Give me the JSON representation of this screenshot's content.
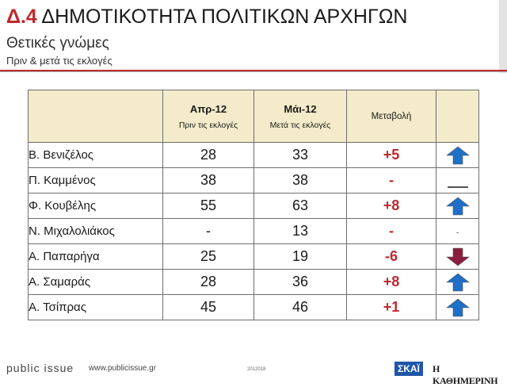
{
  "header": {
    "code": "Δ.4",
    "title": "ΔΗΜΟΤΙΚΟΤΗΤΑ ΠΟΛΙΤΙΚΩΝ ΑΡΧΗΓΩΝ",
    "subtitle": "Θετικές γνώμες",
    "subsubtitle": "Πριν & μετά τις εκλογές"
  },
  "table": {
    "columns": [
      {
        "label": "Απρ-12",
        "sublabel": "Πριν τις εκλογές"
      },
      {
        "label": "Μάι-12",
        "sublabel": "Μετά τις εκλογές"
      },
      {
        "label": "Μεταβολή"
      }
    ],
    "rows": [
      {
        "name": "Β. Βενιζέλος",
        "apr": "28",
        "may": "33",
        "change": "+5",
        "trend": "up"
      },
      {
        "name": "Π. Καμμένος",
        "apr": "38",
        "may": "38",
        "change": "-",
        "trend": "flat"
      },
      {
        "name": "Φ. Κουβέλης",
        "apr": "55",
        "may": "63",
        "change": "+8",
        "trend": "up"
      },
      {
        "name": "Ν. Μιχαλολιάκος",
        "apr": "-",
        "may": "13",
        "change": "-",
        "trend": "none",
        "indicator_text": "-"
      },
      {
        "name": "Α. Παπαρήγα",
        "apr": "25",
        "may": "19",
        "change": "-6",
        "trend": "down"
      },
      {
        "name": "Α. Σαμαράς",
        "apr": "28",
        "may": "36",
        "change": "+8",
        "trend": "up"
      },
      {
        "name": "Α. Τσίπρας",
        "apr": "45",
        "may": "46",
        "change": "+1",
        "trend": "up"
      }
    ]
  },
  "colors": {
    "accent_red": "#c0282d",
    "header_fill": "#f3ebc9",
    "arrow_up": "#1f6fc8",
    "arrow_down": "#8b1e3f"
  },
  "footer": {
    "brand": "public issue",
    "url": "www.publicissue.gr",
    "code": "2012018",
    "logo_skai": "ΣΚΑΪ",
    "logo_kathimerini": "Η ΚΑΘΗΜΕΡΙΝΗ"
  }
}
